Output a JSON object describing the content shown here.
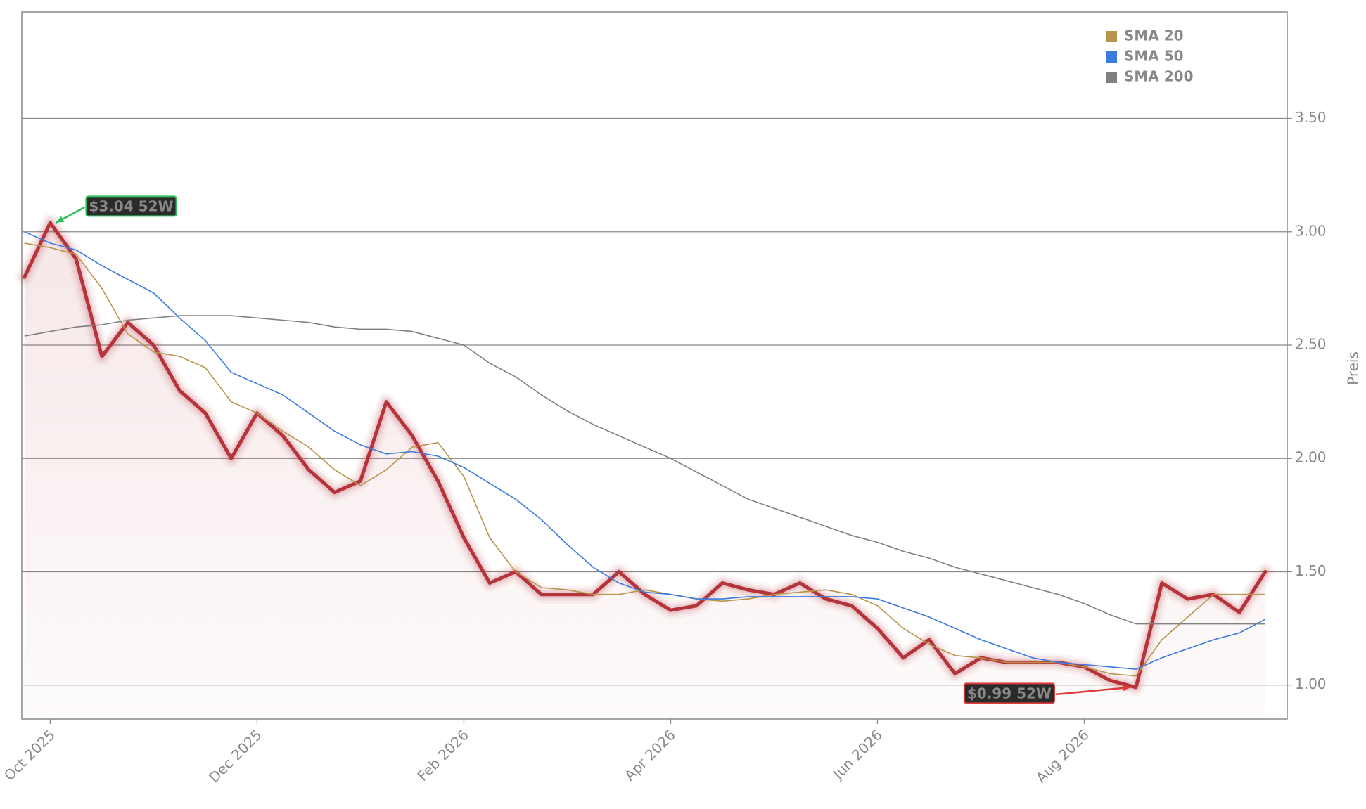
{
  "chart_data": {
    "type": "line",
    "y_label": "Preis",
    "x": [
      "Sep 2025",
      "Oct 2025",
      "Oct 2025",
      "Oct 2025",
      "Oct 2025",
      "Nov 2025",
      "Nov 2025",
      "Nov 2025",
      "Nov 2025",
      "Dec 2025",
      "Dec 2025",
      "Dec 2025",
      "Dec 2025",
      "Jan 2026",
      "Jan 2026",
      "Jan 2026",
      "Jan 2026",
      "Feb 2026",
      "Feb 2026",
      "Feb 2026",
      "Feb 2026",
      "Mar 2026",
      "Mar 2026",
      "Mar 2026",
      "Mar 2026",
      "Apr 2026",
      "Apr 2026",
      "Apr 2026",
      "Apr 2026",
      "May 2026",
      "May 2026",
      "May 2026",
      "May 2026",
      "Jun 2026",
      "Jun 2026",
      "Jun 2026",
      "Jun 2026",
      "Jul 2026",
      "Jul 2026",
      "Jul 2026",
      "Jul 2026",
      "Aug 2026",
      "Aug 2026",
      "Aug 2026",
      "Aug 2026",
      "Sep 2026",
      "Sep 2026",
      "Sep 2026",
      "Sep 2026"
    ],
    "xticks": [
      "Oct 2025",
      "Dec 2025",
      "Feb 2026",
      "Apr 2026",
      "Jun 2026",
      "Aug 2026"
    ],
    "ylim": [
      0.85,
      3.97
    ],
    "yticks": [
      {
        "value": 1.0,
        "label": "1.00"
      },
      {
        "value": 1.5,
        "label": "1.50"
      },
      {
        "value": 2.0,
        "label": "2.00"
      },
      {
        "value": 2.5,
        "label": "2.50"
      },
      {
        "value": 3.0,
        "label": "3.00"
      },
      {
        "value": 3.5,
        "label": "3.50"
      }
    ],
    "grid": true,
    "legend": "upper right",
    "series": [
      {
        "color": "#b5333b",
        "values": [
          2.8,
          3.04,
          2.88,
          2.45,
          2.6,
          2.5,
          2.3,
          2.2,
          2.0,
          2.2,
          2.1,
          1.95,
          1.85,
          1.9,
          2.25,
          2.1,
          1.9,
          1.65,
          1.45,
          1.5,
          1.4,
          1.4,
          1.4,
          1.5,
          1.4,
          1.33,
          1.35,
          1.45,
          1.42,
          1.4,
          1.45,
          1.38,
          1.35,
          1.25,
          1.12,
          1.2,
          1.05,
          1.12,
          1.1,
          1.1,
          1.1,
          1.08,
          1.02,
          0.99,
          1.45,
          1.38,
          1.4,
          1.32,
          1.5
        ]
      },
      {
        "name": "SMA 20",
        "color": "#b8934a",
        "values": [
          2.95,
          2.93,
          2.9,
          2.75,
          2.55,
          2.47,
          2.45,
          2.4,
          2.25,
          2.2,
          2.12,
          2.05,
          1.95,
          1.88,
          1.95,
          2.05,
          2.07,
          1.92,
          1.65,
          1.5,
          1.43,
          1.42,
          1.4,
          1.4,
          1.42,
          1.4,
          1.38,
          1.37,
          1.38,
          1.4,
          1.41,
          1.42,
          1.4,
          1.35,
          1.25,
          1.18,
          1.13,
          1.12,
          1.1,
          1.1,
          1.1,
          1.08,
          1.05,
          1.04,
          1.2,
          1.3,
          1.4,
          1.4,
          1.4
        ]
      },
      {
        "name": "SMA 50",
        "color": "#3b7be0",
        "values": [
          3.0,
          2.95,
          2.92,
          2.85,
          2.79,
          2.73,
          2.62,
          2.52,
          2.38,
          2.33,
          2.28,
          2.2,
          2.12,
          2.06,
          2.02,
          2.03,
          2.01,
          1.96,
          1.89,
          1.82,
          1.73,
          1.62,
          1.52,
          1.45,
          1.41,
          1.4,
          1.38,
          1.38,
          1.39,
          1.39,
          1.39,
          1.39,
          1.39,
          1.38,
          1.34,
          1.3,
          1.25,
          1.2,
          1.16,
          1.12,
          1.1,
          1.09,
          1.08,
          1.07,
          1.12,
          1.16,
          1.2,
          1.23,
          1.29
        ]
      },
      {
        "name": "SMA 200",
        "color": "#808080",
        "values": [
          2.54,
          2.56,
          2.58,
          2.59,
          2.61,
          2.62,
          2.63,
          2.63,
          2.63,
          2.62,
          2.61,
          2.6,
          2.58,
          2.57,
          2.57,
          2.56,
          2.53,
          2.5,
          2.42,
          2.36,
          2.28,
          2.21,
          2.15,
          2.1,
          2.05,
          2.0,
          1.94,
          1.88,
          1.82,
          1.78,
          1.74,
          1.7,
          1.66,
          1.63,
          1.59,
          1.56,
          1.52,
          1.49,
          1.46,
          1.43,
          1.4,
          1.36,
          1.31,
          1.27,
          1.27,
          1.27,
          1.27,
          1.27,
          1.27
        ]
      }
    ],
    "annotations": [
      {
        "text": "$3.04 52W",
        "color": "#2ebd5b"
      },
      {
        "text": "$0.99 52W",
        "color": "#e03c3c"
      }
    ]
  }
}
